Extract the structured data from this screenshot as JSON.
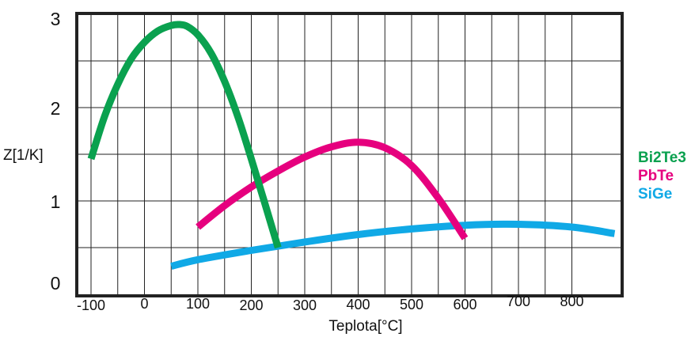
{
  "chart_data": {
    "type": "line",
    "title": "",
    "xlabel": "Teplota[°C]",
    "ylabel": "Z[1/K]",
    "xlim": [
      -100,
      900
    ],
    "ylim": [
      0,
      3
    ],
    "grid": true,
    "legend_position": "right",
    "x_ticks": [
      "-100",
      "0",
      "100",
      "200",
      "300",
      "400",
      "500",
      "600",
      "700",
      "800"
    ],
    "y_ticks": [
      "0",
      "1",
      "2",
      "3"
    ],
    "series": [
      {
        "name": "Bi2Te3",
        "color": "#0aa14f",
        "x": [
          -100,
          -75,
          -50,
          -25,
          0,
          25,
          50,
          65,
          80,
          100,
          125,
          150,
          175,
          200,
          225,
          250
        ],
        "y": [
          1.45,
          1.9,
          2.25,
          2.52,
          2.7,
          2.82,
          2.88,
          2.89,
          2.87,
          2.78,
          2.58,
          2.28,
          1.9,
          1.45,
          0.98,
          0.5
        ]
      },
      {
        "name": "PbTe",
        "color": "#e6007e",
        "x": [
          100,
          150,
          200,
          250,
          300,
          350,
          400,
          450,
          500,
          550,
          600
        ],
        "y": [
          0.72,
          0.95,
          1.15,
          1.32,
          1.47,
          1.58,
          1.63,
          1.57,
          1.38,
          1.03,
          0.6
        ]
      },
      {
        "name": "SiGe",
        "color": "#10a9e6",
        "x": [
          50,
          100,
          200,
          300,
          400,
          500,
          600,
          700,
          800,
          880
        ],
        "y": [
          0.3,
          0.37,
          0.47,
          0.56,
          0.64,
          0.7,
          0.74,
          0.75,
          0.72,
          0.65
        ]
      }
    ]
  }
}
